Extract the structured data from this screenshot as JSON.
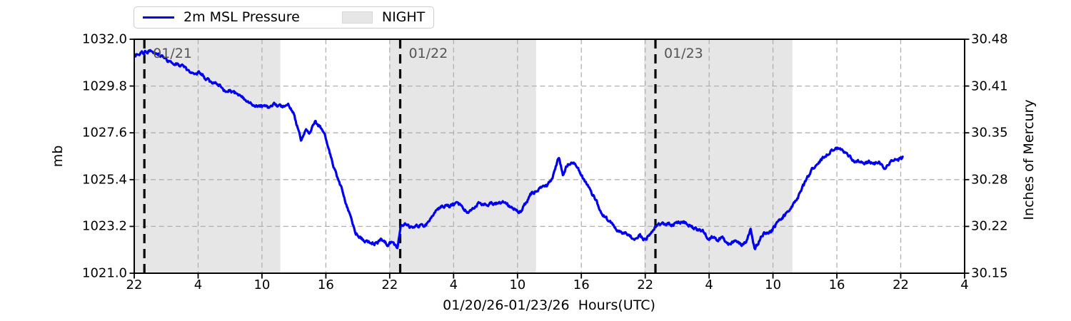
{
  "chart_data": {
    "type": "line",
    "title": "",
    "legend": {
      "series_label": "2m MSL Pressure",
      "night_label": "NIGHT",
      "position": "top-left"
    },
    "x_axis": {
      "label": "01/20/26-01/23/26  Hours(UTC)",
      "range_hours": [
        0,
        78
      ],
      "start_time": "01/20/26 22:00 UTC",
      "tick_step_hours": 6,
      "tick_labels": [
        "22",
        "4",
        "10",
        "16",
        "22",
        "4",
        "10",
        "16",
        "22",
        "4",
        "10",
        "16",
        "22",
        "4"
      ]
    },
    "y_axis_left": {
      "label": "mb",
      "min": 1021.0,
      "max": 1032.0,
      "tick_labels_top_to_bottom": [
        "1032.0",
        "1029.8",
        "1027.6",
        "1025.4",
        "1023.2",
        "1021.0"
      ]
    },
    "y_axis_right": {
      "label": "Inches of Mercury",
      "min": 30.15,
      "max": 30.48,
      "tick_labels_top_to_bottom": [
        "30.48",
        "30.41",
        "30.35",
        "30.28",
        "30.22",
        "30.15"
      ]
    },
    "grid": true,
    "night_bands_hours": [
      [
        0,
        13.73
      ],
      [
        23.96,
        37.74
      ],
      [
        47.9,
        61.82
      ]
    ],
    "day_lines": [
      {
        "hour": 0.95,
        "label": "01/21"
      },
      {
        "hour": 24.98,
        "label": "01/22"
      },
      {
        "hour": 48.96,
        "label": "01/23"
      }
    ],
    "colors": {
      "line": "#0000ee",
      "night_fill": "#e6e6e6",
      "grid": "#b0b0b0",
      "day_line": "#000000",
      "annotation_text": "#545454"
    },
    "series": [
      {
        "name": "2m MSL Pressure",
        "color": "#0000ee",
        "units": "mb",
        "x_units": "hours since 01/20/26 22:00 UTC",
        "points": [
          [
            0,
            1031.25
          ],
          [
            0.5,
            1031.3
          ],
          [
            1.1,
            1031.4
          ],
          [
            1.6,
            1031.45
          ],
          [
            2.2,
            1031.35
          ],
          [
            2.6,
            1031.2
          ],
          [
            3.1,
            1031.0
          ],
          [
            3.6,
            1030.9
          ],
          [
            4.1,
            1030.85
          ],
          [
            4.6,
            1030.75
          ],
          [
            5.1,
            1030.5
          ],
          [
            5.7,
            1030.45
          ],
          [
            6.3,
            1030.4
          ],
          [
            6.7,
            1030.15
          ],
          [
            7.2,
            1030.0
          ],
          [
            7.8,
            1029.95
          ],
          [
            8.4,
            1029.65
          ],
          [
            9.1,
            1029.55
          ],
          [
            9.8,
            1029.4
          ],
          [
            10.3,
            1029.2
          ],
          [
            10.9,
            1029.0
          ],
          [
            11.5,
            1028.9
          ],
          [
            12.1,
            1028.85
          ],
          [
            12.7,
            1028.8
          ],
          [
            13.3,
            1028.95
          ],
          [
            13.9,
            1028.8
          ],
          [
            14.5,
            1028.9
          ],
          [
            14.9,
            1028.6
          ],
          [
            15.3,
            1027.9
          ],
          [
            15.7,
            1027.2
          ],
          [
            16.1,
            1027.8
          ],
          [
            16.5,
            1027.6
          ],
          [
            17.0,
            1028.1
          ],
          [
            17.5,
            1027.9
          ],
          [
            17.9,
            1027.5
          ],
          [
            18.4,
            1026.6
          ],
          [
            19.0,
            1025.6
          ],
          [
            19.6,
            1024.8
          ],
          [
            20.2,
            1023.8
          ],
          [
            20.8,
            1022.9
          ],
          [
            21.4,
            1022.6
          ],
          [
            22.0,
            1022.45
          ],
          [
            22.6,
            1022.4
          ],
          [
            23.2,
            1022.55
          ],
          [
            23.8,
            1022.35
          ],
          [
            24.3,
            1022.45
          ],
          [
            24.7,
            1022.2
          ],
          [
            25.05,
            1023.35
          ],
          [
            25.5,
            1023.25
          ],
          [
            26.0,
            1023.15
          ],
          [
            26.5,
            1023.3
          ],
          [
            27.0,
            1023.2
          ],
          [
            27.5,
            1023.35
          ],
          [
            28.0,
            1023.7
          ],
          [
            28.5,
            1024.05
          ],
          [
            29.0,
            1024.2
          ],
          [
            29.6,
            1024.15
          ],
          [
            30.2,
            1024.25
          ],
          [
            30.8,
            1024.2
          ],
          [
            31.3,
            1023.8
          ],
          [
            31.8,
            1024.1
          ],
          [
            32.4,
            1024.25
          ],
          [
            33.0,
            1024.2
          ],
          [
            33.6,
            1024.3
          ],
          [
            34.2,
            1024.25
          ],
          [
            34.8,
            1024.3
          ],
          [
            35.4,
            1024.1
          ],
          [
            36.0,
            1023.95
          ],
          [
            36.3,
            1023.9
          ],
          [
            36.8,
            1024.3
          ],
          [
            37.3,
            1024.75
          ],
          [
            37.8,
            1024.9
          ],
          [
            38.3,
            1025.0
          ],
          [
            38.8,
            1025.1
          ],
          [
            39.2,
            1025.4
          ],
          [
            39.6,
            1026.0
          ],
          [
            39.9,
            1026.45
          ],
          [
            40.25,
            1025.65
          ],
          [
            40.7,
            1026.1
          ],
          [
            41.1,
            1026.2
          ],
          [
            41.5,
            1026.1
          ],
          [
            42.0,
            1025.6
          ],
          [
            42.4,
            1025.25
          ],
          [
            42.8,
            1024.95
          ],
          [
            43.3,
            1024.5
          ],
          [
            43.9,
            1023.85
          ],
          [
            44.6,
            1023.45
          ],
          [
            45.3,
            1023.05
          ],
          [
            45.9,
            1022.9
          ],
          [
            46.5,
            1022.75
          ],
          [
            47.0,
            1022.6
          ],
          [
            47.5,
            1022.75
          ],
          [
            47.9,
            1022.55
          ],
          [
            48.3,
            1022.75
          ],
          [
            48.7,
            1022.95
          ],
          [
            49.0,
            1023.3
          ],
          [
            49.5,
            1023.3
          ],
          [
            50.0,
            1023.35
          ],
          [
            50.5,
            1023.3
          ],
          [
            51.0,
            1023.35
          ],
          [
            51.5,
            1023.45
          ],
          [
            52.0,
            1023.3
          ],
          [
            52.5,
            1023.15
          ],
          [
            53.0,
            1023.05
          ],
          [
            53.5,
            1022.95
          ],
          [
            53.9,
            1022.6
          ],
          [
            54.4,
            1022.75
          ],
          [
            54.8,
            1022.55
          ],
          [
            55.2,
            1022.7
          ],
          [
            55.9,
            1022.35
          ],
          [
            56.4,
            1022.5
          ],
          [
            57.0,
            1022.35
          ],
          [
            57.5,
            1022.45
          ],
          [
            57.9,
            1023.05
          ],
          [
            58.3,
            1022.1
          ],
          [
            58.8,
            1022.6
          ],
          [
            59.2,
            1022.95
          ],
          [
            59.6,
            1022.85
          ],
          [
            60.1,
            1023.15
          ],
          [
            60.6,
            1023.5
          ],
          [
            61.1,
            1023.7
          ],
          [
            61.6,
            1023.95
          ],
          [
            62.0,
            1024.25
          ],
          [
            62.5,
            1024.75
          ],
          [
            63.1,
            1025.35
          ],
          [
            63.7,
            1025.9
          ],
          [
            64.3,
            1026.2
          ],
          [
            64.9,
            1026.5
          ],
          [
            65.5,
            1026.75
          ],
          [
            66.1,
            1026.88
          ],
          [
            66.6,
            1026.8
          ],
          [
            67.1,
            1026.5
          ],
          [
            67.6,
            1026.3
          ],
          [
            68.0,
            1026.3
          ],
          [
            68.5,
            1026.1
          ],
          [
            69.0,
            1026.25
          ],
          [
            69.5,
            1026.15
          ],
          [
            70.0,
            1026.25
          ],
          [
            70.4,
            1025.9
          ],
          [
            70.8,
            1026.1
          ],
          [
            71.2,
            1026.3
          ],
          [
            71.7,
            1026.3
          ],
          [
            72.2,
            1026.4
          ]
        ]
      }
    ]
  }
}
